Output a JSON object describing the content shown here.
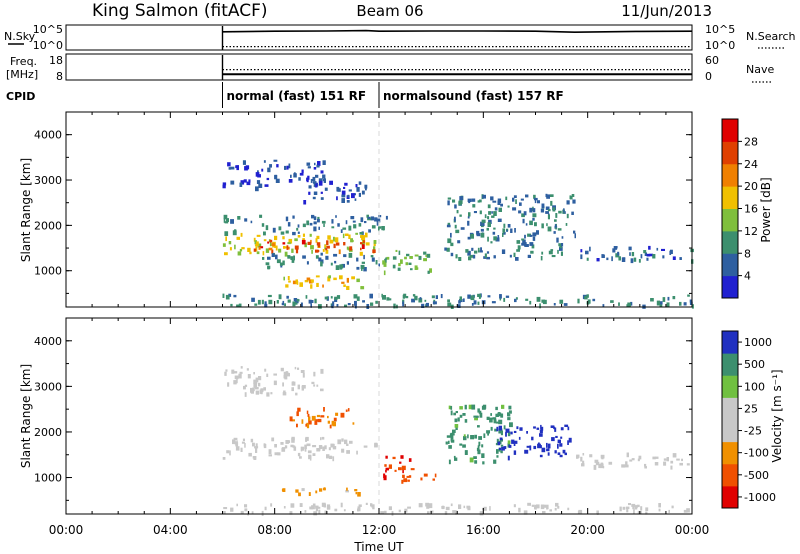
{
  "header": {
    "station": "King Salmon (fitACF)",
    "beam": "Beam 06",
    "date": "11/Jun/2013"
  },
  "panel_labels": {
    "nsky": "N.Sky",
    "freq_line1": "Freq.",
    "freq_line2": "[MHz]",
    "cpid": "CPID",
    "nsearch": "N.Search",
    "nave": "Nave"
  },
  "cpid_modes": [
    {
      "label": "normal (fast) 151 RF",
      "start_hour": 6,
      "end_hour": 12
    },
    {
      "label": "normalsound (fast) 157 RF",
      "start_hour": 12,
      "end_hour": 24
    }
  ],
  "x_axis": {
    "label": "Time UT",
    "range_hours": [
      0,
      24
    ],
    "ticks": [
      "00:00",
      "04:00",
      "08:00",
      "12:00",
      "16:00",
      "20:00",
      "00:00"
    ],
    "tick_hours": [
      0,
      4,
      8,
      12,
      16,
      20,
      24
    ]
  },
  "colors": {
    "power_scale": [
      "#2020d0",
      "#2e5fa0",
      "#3c8f6e",
      "#7fbf3c",
      "#f0c000",
      "#f08000",
      "#e04000",
      "#e00000"
    ],
    "velocity_scale": [
      "#e00000",
      "#f05000",
      "#f09000",
      "#c8c8c8",
      "#c8c8c8",
      "#70c040",
      "#3c8f6e",
      "#2030c0"
    ],
    "ground_scatter": "#c0c0c0"
  },
  "chart_data": [
    {
      "type": "line",
      "panel": "N.Sky / N.Search",
      "left_axis": {
        "label": "N.Sky",
        "ticks": [
          "10^5",
          "10^0"
        ]
      },
      "right_axis": {
        "label": "N.Search",
        "ticks": [
          "10^5",
          "10^0"
        ]
      },
      "series": [
        {
          "name": "N.Sky",
          "x_hours": [
            6,
            8,
            10,
            11.5,
            12,
            14,
            16,
            18,
            19.5,
            22,
            24
          ],
          "values_log10": [
            4.3,
            4.45,
            4.5,
            4.6,
            4.45,
            4.5,
            4.5,
            4.45,
            4.2,
            4.4,
            4.45
          ],
          "style": "solid"
        },
        {
          "name": "N.Search",
          "x_hours": [
            6,
            12,
            18,
            24
          ],
          "values_log10": [
            0.6,
            0.6,
            0.6,
            0.6
          ],
          "style": "dotted"
        }
      ]
    },
    {
      "type": "line",
      "panel": "Freq. / Nave",
      "left_axis": {
        "label": "Freq. [MHz]",
        "ticks": [
          "18",
          "8"
        ],
        "range": [
          8,
          18
        ]
      },
      "right_axis": {
        "label": "Nave",
        "ticks": [
          "60",
          "0"
        ],
        "range": [
          0,
          60
        ]
      },
      "series": [
        {
          "name": "Freq.",
          "x_hours": [
            6,
            12,
            18,
            24
          ],
          "values": [
            10.2,
            10.2,
            10.2,
            10.2
          ],
          "style": "solid"
        },
        {
          "name": "Nave",
          "x_hours": [
            6,
            12,
            18,
            24
          ],
          "values": [
            24,
            24,
            24,
            24
          ],
          "style": "dotted"
        }
      ]
    },
    {
      "type": "heatmap",
      "panel": "Power",
      "ylabel": "Slant Range [km]",
      "ylim": [
        200,
        4500
      ],
      "yticks": [
        1000,
        2000,
        3000,
        4000
      ],
      "colorbar": {
        "label": "Power [dB]",
        "range": [
          0,
          32
        ],
        "ticks": [
          4,
          8,
          12,
          16,
          20,
          24,
          28
        ]
      },
      "echo_regions": [
        {
          "t0": 6.0,
          "t1": 10.0,
          "r0": 2850,
          "r1": 3450,
          "value": 4
        },
        {
          "t0": 9.0,
          "t1": 11.5,
          "r0": 2550,
          "r1": 3050,
          "value": 5
        },
        {
          "t0": 6.0,
          "t1": 12.5,
          "r0": 1850,
          "r1": 2250,
          "value": 8
        },
        {
          "t0": 6.0,
          "t1": 12.0,
          "r0": 1400,
          "r1": 1850,
          "value": 16
        },
        {
          "t0": 7.0,
          "t1": 11.8,
          "r0": 1450,
          "r1": 1700,
          "value": 26
        },
        {
          "t0": 7.5,
          "t1": 12.0,
          "r0": 1050,
          "r1": 1400,
          "value": 8
        },
        {
          "t0": 12.0,
          "t1": 14.0,
          "r0": 1000,
          "r1": 1500,
          "value": 12
        },
        {
          "t0": 8.2,
          "t1": 11.5,
          "r0": 650,
          "r1": 900,
          "value": 18
        },
        {
          "t0": 14.5,
          "t1": 19.5,
          "r0": 1300,
          "r1": 2700,
          "value": 8
        },
        {
          "t0": 19.5,
          "t1": 24.0,
          "r0": 1250,
          "r1": 1550,
          "value": 6
        },
        {
          "t0": 6.0,
          "t1": 24.0,
          "r0": 250,
          "r1": 500,
          "value": 8
        }
      ]
    },
    {
      "type": "heatmap",
      "panel": "Velocity",
      "ylabel": "Slant Range [km]",
      "ylim": [
        200,
        4500
      ],
      "yticks": [
        1000,
        2000,
        3000,
        4000
      ],
      "colorbar": {
        "label": "Velocity [m s⁻¹]",
        "ticks": [
          "1000",
          "500",
          "100",
          "25",
          "-25",
          "-100",
          "-500",
          "-1000"
        ]
      },
      "echo_regions": [
        {
          "t0": 6.0,
          "t1": 10.0,
          "r0": 2850,
          "r1": 3450,
          "value": 0
        },
        {
          "t0": 6.0,
          "t1": 12.0,
          "r0": 1450,
          "r1": 1900,
          "value": 0
        },
        {
          "t0": 8.5,
          "t1": 11.0,
          "r0": 2150,
          "r1": 2550,
          "value": -300
        },
        {
          "t0": 12.0,
          "t1": 13.2,
          "r0": 1050,
          "r1": 1500,
          "value": -700
        },
        {
          "t0": 12.8,
          "t1": 14.2,
          "r0": 950,
          "r1": 1250,
          "value": -400
        },
        {
          "t0": 8.2,
          "t1": 11.5,
          "r0": 650,
          "r1": 850,
          "value": -100
        },
        {
          "t0": 14.5,
          "t1": 17.0,
          "r0": 1350,
          "r1": 2600,
          "value": 300
        },
        {
          "t0": 16.5,
          "t1": 19.5,
          "r0": 1450,
          "r1": 2200,
          "value": 800
        },
        {
          "t0": 19.5,
          "t1": 24.0,
          "r0": 1250,
          "r1": 1550,
          "value": 0
        },
        {
          "t0": 6.0,
          "t1": 24.0,
          "r0": 250,
          "r1": 450,
          "value": 0
        }
      ]
    }
  ]
}
